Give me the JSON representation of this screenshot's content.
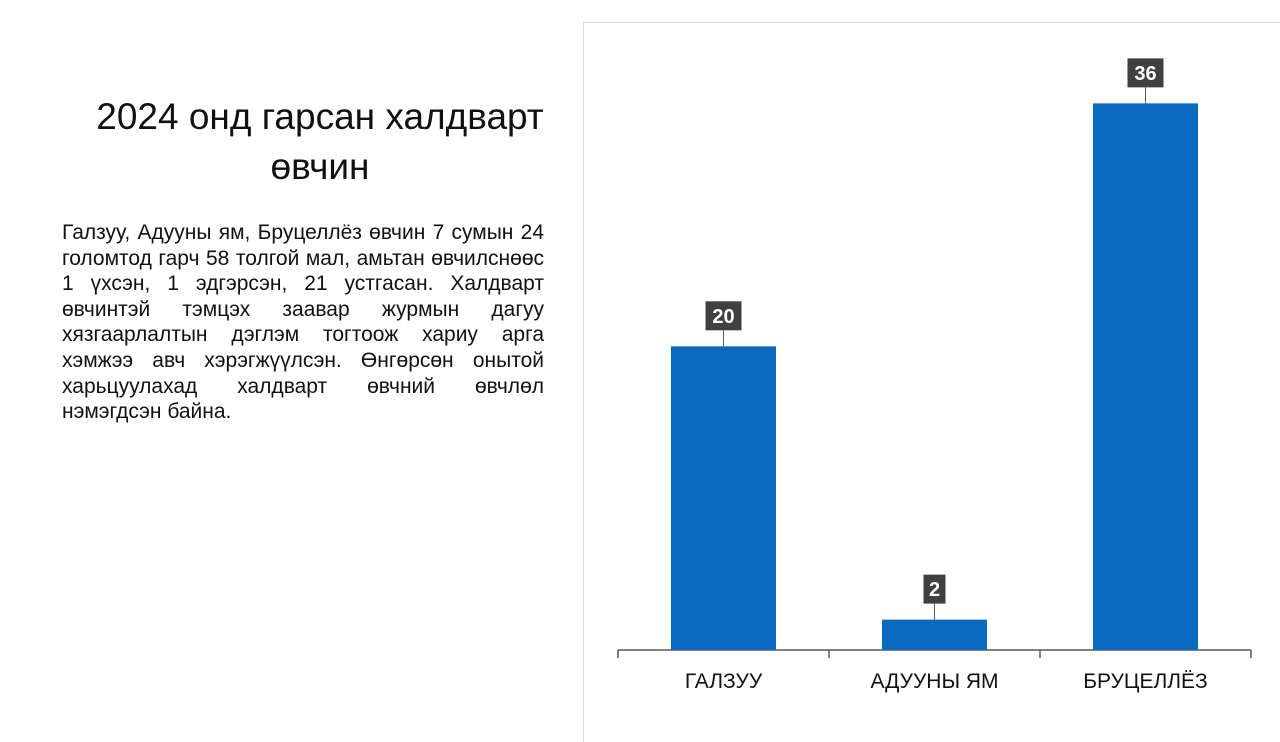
{
  "slide": {
    "title_lines": [
      "2024 онд гарсан халдварт",
      "өвчин"
    ],
    "body": "Галзуу, Адууны ям, Бруцеллёз өвчин 7 сумын 24 голомтод гарч 58 толгой мал, амьтан өвчилснөөс 1 үхсэн, 1 эдгэрсэн, 21 устгасан. Халдварт өвчинтэй тэмцэх заавар журмын дагуу хязгаарлалтын дэглэм тогтоож хариу арга хэмжээ авч хэрэгжүүлсэн. Өнгөрсөн онытой харьцуулахад халдварт өвчний өвчлөл нэмэгдсэн байна."
  },
  "chart_data": {
    "type": "bar",
    "categories": [
      "ГАЛЗУУ",
      "АДУУНЫ ЯМ",
      "БРУЦЕЛЛЁЗ"
    ],
    "values": [
      20,
      2,
      36
    ],
    "title": "",
    "xlabel": "",
    "ylabel": "",
    "ylim": [
      0,
      38
    ],
    "grid": false,
    "data_labels": true,
    "colors": {
      "bar": "#0a6abf",
      "label_bg": "#404040",
      "axis": "#595959"
    }
  }
}
